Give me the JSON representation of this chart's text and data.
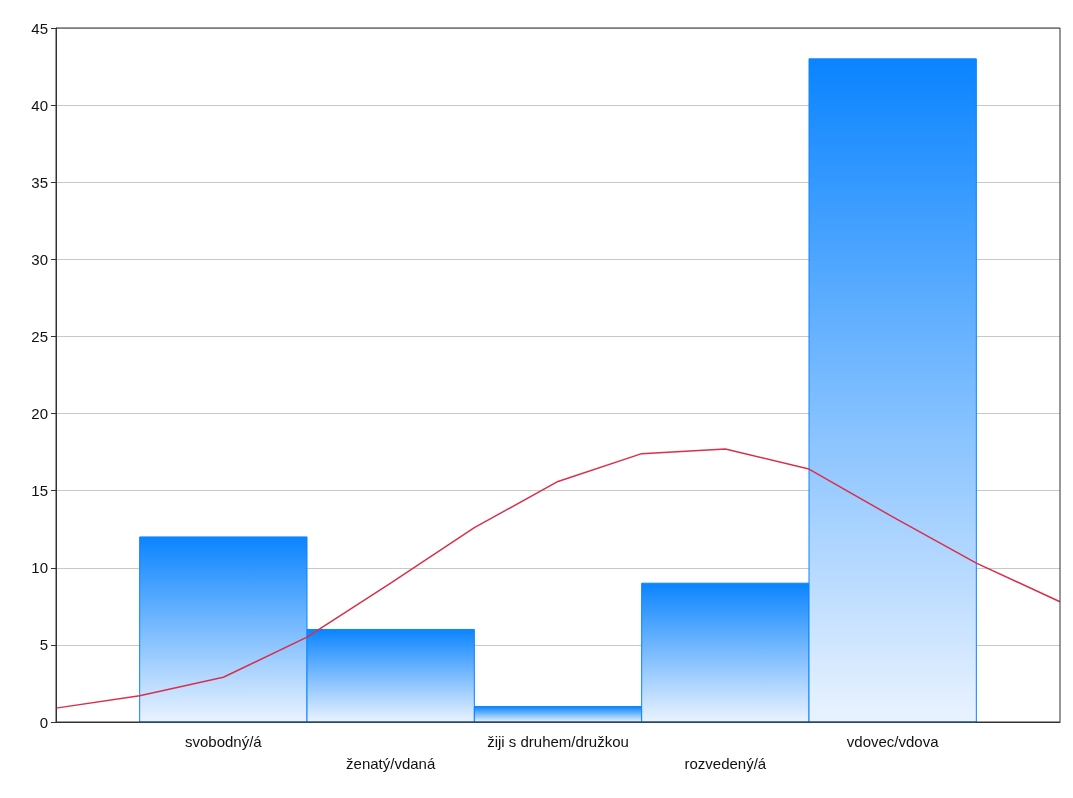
{
  "chart_data": {
    "type": "bar",
    "categories": [
      null,
      null,
      "svobodný/á",
      null,
      "ženatý/vdaná",
      null,
      "žiji s druhem/družkou",
      null,
      "rozvedený/á",
      null,
      "vdovec/vdova",
      null,
      null
    ],
    "series": [
      {
        "color": "#0a84ff",
        "values": [
          null,
          null,
          12,
          null,
          6,
          null,
          1,
          null,
          9,
          null,
          43,
          null,
          null
        ]
      },
      {
        "type": "line",
        "color": "#d9304a",
        "values": [
          0.9,
          1.7,
          2.9,
          5.5,
          9.0,
          12.6,
          15.6,
          17.4,
          17.7,
          16.4,
          13.3,
          10.3,
          7.8
        ]
      }
    ],
    "ylim": [
      0,
      45
    ],
    "yticks": [
      0,
      5,
      10,
      15,
      20,
      25,
      30,
      35,
      40,
      45
    ],
    "grid": "y",
    "legend": false,
    "marker": "none",
    "line_style": "solid"
  }
}
